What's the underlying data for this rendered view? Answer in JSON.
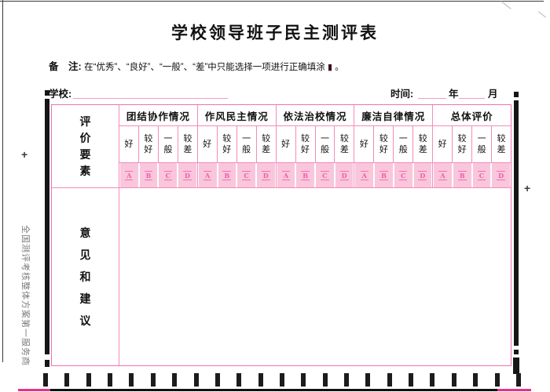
{
  "page": {
    "title": "学校领导班子民主测评表",
    "note_label": "备　注",
    "note_colon": ": ",
    "note_text": "在“优秀”、“良好”、“一般”、“差”中只能选择一项进行正确填涂 ",
    "note_fill_mark": "▮",
    "note_period": " 。",
    "school_label": "学校:",
    "time_label": "时间:",
    "year_label": "年",
    "month_label": "月",
    "side_text": "全国测评考核整体方案第一服务商",
    "plus_mark": "+"
  },
  "table": {
    "eval_header": "评价要素",
    "body_header": "意见和建议",
    "groups": [
      {
        "label": "团结协作情况"
      },
      {
        "label": "作风民主情况"
      },
      {
        "label": "依法治校情况"
      },
      {
        "label": "廉洁自律情况"
      },
      {
        "label": "总体评价"
      }
    ],
    "subcolumns": [
      "好",
      "较好",
      "一般",
      "较差"
    ],
    "bubbles": [
      "A",
      "B",
      "C",
      "D"
    ]
  },
  "marks": {
    "timing_count": 23
  },
  "colors": {
    "table_border": "#f072ae",
    "grid_line": "#f48cbc",
    "bubble_bg": "#f9c6db",
    "bubble_letter": "#ee5ca9",
    "underline": "#f19cc3",
    "bottom_accent": "#e8308a",
    "fill_mark": "#40101c",
    "side_text": "#7b7b7b"
  }
}
